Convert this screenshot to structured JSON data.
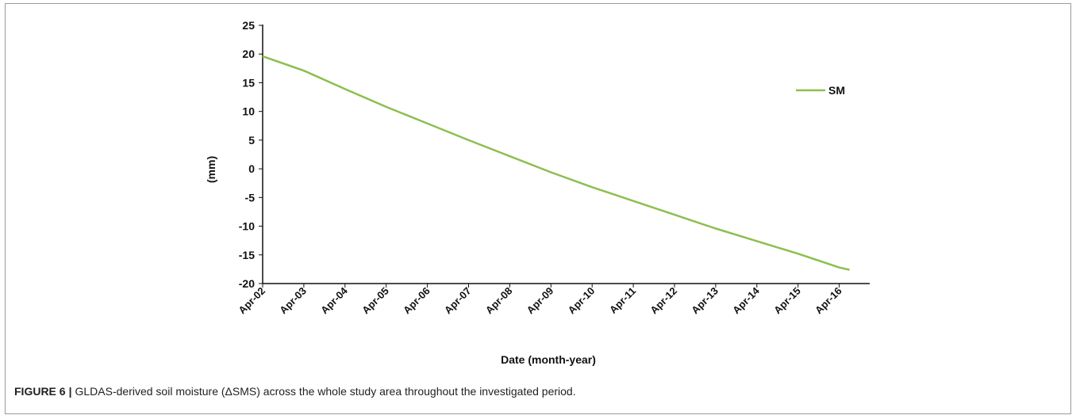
{
  "chart_data": {
    "type": "line",
    "xlabel": "Date (month-year)",
    "ylabel": "(mm)",
    "ylim": [
      -20,
      25
    ],
    "y_ticks": [
      25,
      20,
      15,
      10,
      5,
      0,
      -5,
      -10,
      -15,
      -20
    ],
    "x_ticks": [
      "Apr-02",
      "Apr-03",
      "Apr-04",
      "Apr-05",
      "Apr-06",
      "Apr-07",
      "Apr-08",
      "Apr-09",
      "Apr-10",
      "Apr-11",
      "Apr-12",
      "Apr-13",
      "Apr-14",
      "Apr-15",
      "Apr-16"
    ],
    "grid": false,
    "legend_position": "top-right",
    "series": [
      {
        "name": "SM",
        "color": "#8cbf4f",
        "x": [
          "Apr-02",
          "Apr-03",
          "Apr-04",
          "Apr-05",
          "Apr-06",
          "Apr-07",
          "Apr-08",
          "Apr-09",
          "Apr-10",
          "Apr-11",
          "Apr-12",
          "Apr-13",
          "Apr-14",
          "Apr-15",
          "Apr-16"
        ],
        "y": [
          19.6,
          17.1,
          13.9,
          10.8,
          7.9,
          5.0,
          2.2,
          -0.6,
          -3.2,
          -5.6,
          -8.0,
          -10.4,
          -12.6,
          -14.8,
          -17.2
        ],
        "end_point": {
          "x": "Jul-16",
          "y": -17.6
        }
      }
    ]
  },
  "caption": {
    "label": "FIGURE 6",
    "separator": "|",
    "text": "GLDAS-derived soil moisture (ΔSMS) across the whole study area throughout the investigated period."
  }
}
